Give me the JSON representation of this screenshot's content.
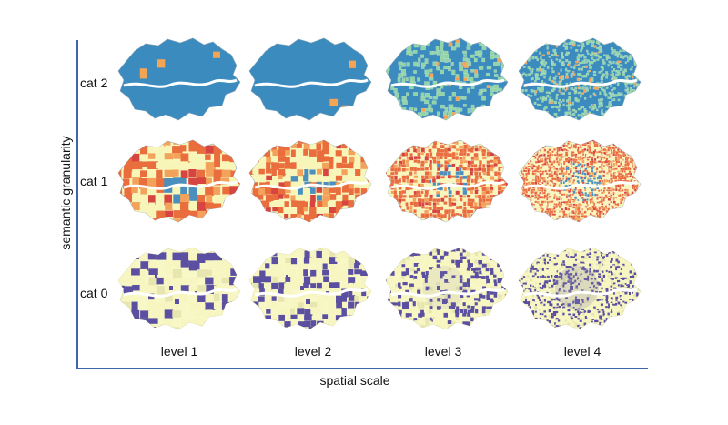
{
  "figure": {
    "y_axis_label": "semantic granularity",
    "x_axis_label": "spatial scale",
    "rows": [
      {
        "label": "cat 2",
        "palette": [
          "#3b8bbf",
          "#f4a455",
          "#92d3a8",
          "#fbfbbd",
          "#d13a4f",
          "#ebe99b"
        ],
        "base": "#3b8bbf"
      },
      {
        "label": "cat 1",
        "palette": [
          "#ea6d3d",
          "#f7f6b8",
          "#4a8fbd",
          "#d6453f",
          "#f2a25a"
        ],
        "base": "#f8f6bc"
      },
      {
        "label": "cat 0",
        "palette": [
          "#f7f6c1",
          "#5a4fa0",
          "#e8e6b0"
        ],
        "base": "#f8f7c6"
      }
    ],
    "columns": [
      {
        "label": "level 1",
        "detail": 1
      },
      {
        "label": "level 2",
        "detail": 2
      },
      {
        "label": "level 3",
        "detail": 3
      },
      {
        "label": "level 4",
        "detail": 4
      }
    ]
  }
}
